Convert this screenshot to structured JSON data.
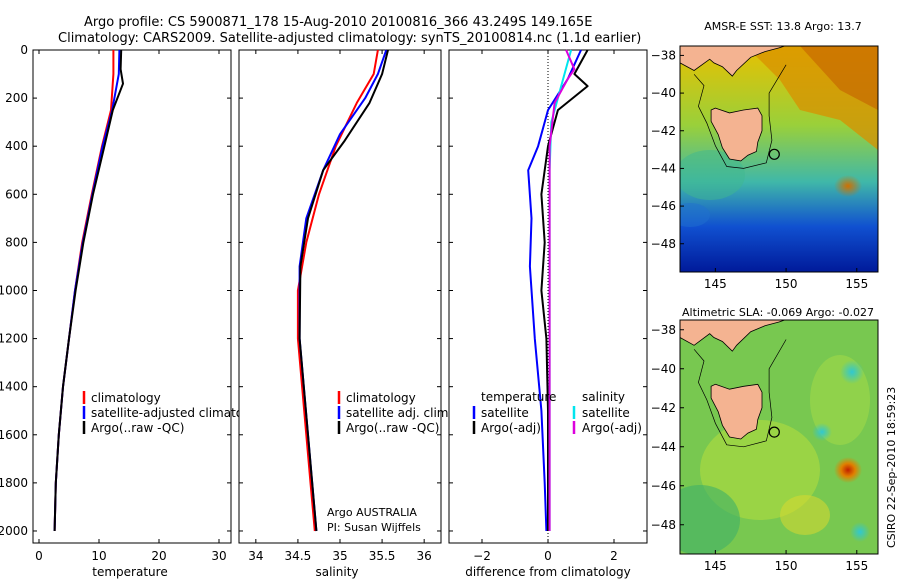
{
  "header": {
    "line1": "Argo profile: CS 5900871_178 15-Aug-2010 20100816_366 43.249S 149.165E",
    "line2": "Climatology: CARS2009. Satellite-adjusted climatology: synTS_20100814.nc (1.1d earlier)"
  },
  "colors": {
    "climatology": "#ff0000",
    "satellite": "#0000ff",
    "argo": "#000000",
    "sal_satellite": "#00e5ee",
    "sal_argo": "#dd00dd",
    "land": "#f4b391"
  },
  "chart_data": [
    {
      "type": "line",
      "xlabel": "temperature",
      "xlim": [
        -1,
        32
      ],
      "xticks": [
        0,
        10,
        20,
        30
      ],
      "ylim": [
        2050,
        0
      ],
      "yticks": [
        0,
        200,
        400,
        600,
        800,
        1000,
        1200,
        1400,
        1600,
        1800,
        2000
      ],
      "legend_placement": "center-right",
      "series": [
        {
          "name": "climatology",
          "color_key": "climatology",
          "points": [
            [
              12.4,
              0
            ],
            [
              12.4,
              100
            ],
            [
              12.0,
              250
            ],
            [
              10.5,
              400
            ],
            [
              8.8,
              600
            ],
            [
              7.2,
              800
            ],
            [
              6.0,
              1000
            ],
            [
              5.0,
              1200
            ],
            [
              4.0,
              1400
            ],
            [
              3.3,
              1600
            ],
            [
              2.8,
              1800
            ],
            [
              2.6,
              2000
            ]
          ]
        },
        {
          "name": "satellite-adjusted climatology",
          "color_key": "satellite",
          "points": [
            [
              13.4,
              0
            ],
            [
              13.3,
              100
            ],
            [
              12.2,
              250
            ],
            [
              10.6,
              400
            ],
            [
              8.9,
              600
            ],
            [
              7.3,
              800
            ],
            [
              6.0,
              1000
            ],
            [
              5.0,
              1200
            ],
            [
              4.0,
              1400
            ],
            [
              3.3,
              1600
            ],
            [
              2.8,
              1800
            ],
            [
              2.6,
              2000
            ]
          ]
        },
        {
          "name": "Argo(..raw -QC)",
          "color_key": "argo",
          "points": [
            [
              13.7,
              0
            ],
            [
              13.6,
              80
            ],
            [
              14.0,
              140
            ],
            [
              12.3,
              250
            ],
            [
              10.9,
              400
            ],
            [
              9.0,
              600
            ],
            [
              7.4,
              800
            ],
            [
              6.1,
              1000
            ],
            [
              5.0,
              1200
            ],
            [
              4.0,
              1400
            ],
            [
              3.3,
              1600
            ],
            [
              2.8,
              1800
            ],
            [
              2.6,
              2000
            ]
          ]
        }
      ]
    },
    {
      "type": "line",
      "xlabel": "salinity",
      "xlim": [
        33.8,
        36.2
      ],
      "xticks": [
        34,
        34.5,
        35,
        35.5,
        36
      ],
      "xticklabels": [
        "34",
        "34.5",
        "35",
        "35.5",
        "36"
      ],
      "ylim": [
        2050,
        0
      ],
      "yticks": [
        0,
        200,
        400,
        600,
        800,
        1000,
        1200,
        1400,
        1600,
        1800,
        2000
      ],
      "legend_placement": "center-right",
      "annotation": {
        "line1": "Argo AUSTRALIA",
        "line2": "PI: Susan Wijffels"
      },
      "series": [
        {
          "name": "climatology",
          "color_key": "climatology",
          "points": [
            [
              35.45,
              0
            ],
            [
              35.4,
              100
            ],
            [
              35.2,
              220
            ],
            [
              34.95,
              400
            ],
            [
              34.75,
              600
            ],
            [
              34.6,
              800
            ],
            [
              34.5,
              1000
            ],
            [
              34.5,
              1200
            ],
            [
              34.55,
              1400
            ],
            [
              34.6,
              1600
            ],
            [
              34.65,
              1800
            ],
            [
              34.7,
              2000
            ]
          ]
        },
        {
          "name": "satellite adj. clim.",
          "color_key": "satellite",
          "points": [
            [
              35.55,
              0
            ],
            [
              35.45,
              100
            ],
            [
              35.3,
              200
            ],
            [
              35.0,
              350
            ],
            [
              34.8,
              500
            ],
            [
              34.6,
              700
            ],
            [
              34.52,
              900
            ],
            [
              34.52,
              1200
            ],
            [
              34.57,
              1400
            ],
            [
              34.62,
              1600
            ],
            [
              34.67,
              1800
            ],
            [
              34.72,
              2000
            ]
          ]
        },
        {
          "name": "Argo(..raw -QC)",
          "color_key": "argo",
          "points": [
            [
              35.57,
              0
            ],
            [
              35.5,
              100
            ],
            [
              35.35,
              220
            ],
            [
              35.05,
              380
            ],
            [
              34.8,
              500
            ],
            [
              34.62,
              700
            ],
            [
              34.53,
              900
            ],
            [
              34.52,
              1200
            ],
            [
              34.57,
              1400
            ],
            [
              34.62,
              1600
            ],
            [
              34.67,
              1800
            ],
            [
              34.72,
              2000
            ]
          ]
        }
      ]
    },
    {
      "type": "line",
      "xlabel": "difference from climatology",
      "xlim": [
        -3,
        3
      ],
      "xticks": [
        -2,
        0,
        2
      ],
      "ylim": [
        2050,
        0
      ],
      "yticks": [
        0,
        200,
        400,
        600,
        800,
        1000,
        1200,
        1400,
        1600,
        1800,
        2000
      ],
      "legend_placement": "center-right",
      "legend_headers": {
        "temperature": "temperature",
        "salinity": "salinity"
      },
      "series": [
        {
          "name": "satellite",
          "group": "temperature",
          "color_key": "satellite",
          "points": [
            [
              1.0,
              0
            ],
            [
              0.6,
              120
            ],
            [
              0.0,
              250
            ],
            [
              -0.3,
              400
            ],
            [
              -0.6,
              500
            ],
            [
              -0.5,
              700
            ],
            [
              -0.55,
              900
            ],
            [
              -0.4,
              1200
            ],
            [
              -0.2,
              1500
            ],
            [
              -0.1,
              1800
            ],
            [
              -0.05,
              2000
            ]
          ]
        },
        {
          "name": "Argo(-adj)",
          "group": "temperature",
          "color_key": "argo",
          "points": [
            [
              1.2,
              0
            ],
            [
              0.8,
              100
            ],
            [
              1.2,
              150
            ],
            [
              0.3,
              250
            ],
            [
              0.0,
              400
            ],
            [
              -0.2,
              600
            ],
            [
              -0.1,
              800
            ],
            [
              -0.2,
              1000
            ],
            [
              -0.05,
              1200
            ],
            [
              0.0,
              1500
            ],
            [
              0.0,
              1800
            ],
            [
              0.0,
              2000
            ]
          ]
        },
        {
          "name": "satellite",
          "group": "salinity",
          "color_key": "sal_satellite",
          "points": [
            [
              0.7,
              0
            ],
            [
              0.5,
              100
            ],
            [
              0.3,
              200
            ],
            [
              0.1,
              300
            ],
            [
              0.05,
              500
            ],
            [
              0.05,
              800
            ],
            [
              0.05,
              1000
            ],
            [
              0.05,
              1500
            ],
            [
              0.05,
              2000
            ]
          ]
        },
        {
          "name": "Argo(-adj)",
          "group": "salinity",
          "color_key": "sal_argo",
          "points": [
            [
              0.55,
              0
            ],
            [
              0.8,
              80
            ],
            [
              0.6,
              120
            ],
            [
              0.2,
              220
            ],
            [
              0.05,
              400
            ],
            [
              0.05,
              1000
            ],
            [
              0.05,
              2000
            ]
          ]
        }
      ]
    },
    {
      "type": "heatmap",
      "title": "AMSR-E SST: 13.8 Argo: 13.7",
      "xlim": [
        142.5,
        156.5
      ],
      "ylim": [
        -49.5,
        -37.5
      ],
      "xticks": [
        145,
        150,
        155
      ],
      "yticks": [
        -38,
        -40,
        -42,
        -44,
        -46,
        -48
      ],
      "marker": {
        "lon": 149.165,
        "lat": -43.249
      }
    },
    {
      "type": "heatmap",
      "title": "Altimetric SLA: -0.069 Argo: -0.027",
      "xlim": [
        142.5,
        156.5
      ],
      "ylim": [
        -49.5,
        -37.5
      ],
      "xticks": [
        145,
        150,
        155
      ],
      "yticks": [
        -38,
        -40,
        -42,
        -44,
        -46,
        -48
      ],
      "marker": {
        "lon": 149.165,
        "lat": -43.249
      }
    }
  ],
  "footer": {
    "credit": "CSIRO 22-Sep-2010 18:59:23"
  }
}
